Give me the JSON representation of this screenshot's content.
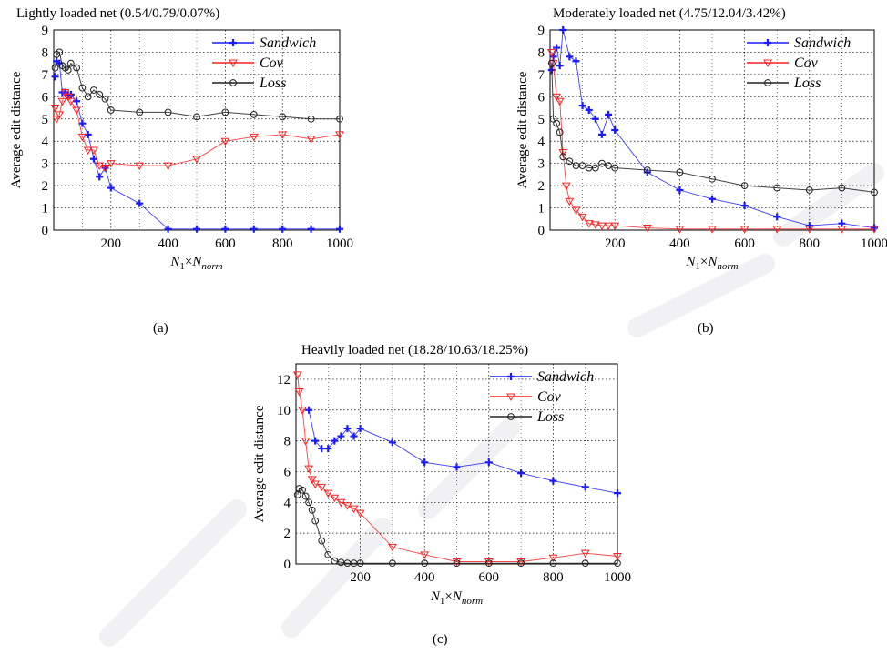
{
  "figure": {
    "captions": [
      "(a)",
      "(b)",
      "(c)"
    ]
  },
  "colors": {
    "sandwich": "#1a1aff",
    "cov": "#ff2020",
    "loss": "#202020",
    "grid": "#000000",
    "watermark": "#e6e6ec"
  },
  "chart_data": [
    {
      "type": "line",
      "title": "Lightly loaded net (0.54/0.79/0.07%)",
      "xlabel": "N1×Nnorm",
      "ylabel": "Average edit distance",
      "xlim": [
        0,
        1000
      ],
      "ylim": [
        0,
        9
      ],
      "xticks": [
        200,
        400,
        600,
        800,
        1000
      ],
      "yticks": [
        0,
        1,
        2,
        3,
        4,
        5,
        6,
        7,
        8,
        9
      ],
      "grid": true,
      "legend": "top-right",
      "series": [
        {
          "name": "Sandwich",
          "marker": "plus",
          "x": [
            5,
            10,
            20,
            30,
            40,
            50,
            60,
            80,
            100,
            120,
            140,
            160,
            180,
            200,
            300,
            400,
            500,
            600,
            700,
            800,
            900,
            1000
          ],
          "y": [
            6.9,
            7.6,
            7.5,
            6.2,
            6.2,
            6.1,
            6.1,
            5.8,
            4.8,
            4.3,
            3.2,
            2.4,
            2.8,
            1.9,
            1.2,
            0.05,
            0.05,
            0.05,
            0.05,
            0.05,
            0.05,
            0.05
          ]
        },
        {
          "name": "Cov",
          "marker": "triangle-down",
          "x": [
            5,
            10,
            20,
            30,
            40,
            50,
            60,
            80,
            100,
            120,
            140,
            160,
            180,
            200,
            300,
            400,
            500,
            600,
            700,
            800,
            900,
            1000
          ],
          "y": [
            5.5,
            5.0,
            5.2,
            5.8,
            6.2,
            6.0,
            5.8,
            5.4,
            4.2,
            3.6,
            3.6,
            2.9,
            2.8,
            3.0,
            2.9,
            2.9,
            3.2,
            4.0,
            4.2,
            4.3,
            4.1,
            4.3
          ]
        },
        {
          "name": "Loss",
          "marker": "circle",
          "x": [
            5,
            10,
            20,
            30,
            40,
            50,
            60,
            80,
            100,
            120,
            140,
            160,
            180,
            200,
            300,
            400,
            500,
            600,
            700,
            800,
            900,
            1000
          ],
          "y": [
            7.3,
            7.9,
            8.0,
            7.4,
            7.3,
            7.2,
            7.5,
            7.3,
            6.4,
            6.0,
            6.3,
            6.1,
            5.9,
            5.4,
            5.3,
            5.3,
            5.1,
            5.3,
            5.2,
            5.1,
            5.0,
            5.0
          ]
        }
      ]
    },
    {
      "type": "line",
      "title": "Moderately loaded net (4.75/12.04/3.42%)",
      "xlabel": "N1×Nnorm",
      "ylabel": "Average edit distance",
      "xlim": [
        0,
        1000
      ],
      "ylim": [
        0,
        9
      ],
      "xticks": [
        200,
        400,
        600,
        800,
        1000
      ],
      "yticks": [
        0,
        1,
        2,
        3,
        4,
        5,
        6,
        7,
        8,
        9
      ],
      "grid": true,
      "legend": "top-right",
      "series": [
        {
          "name": "Sandwich",
          "marker": "plus",
          "x": [
            5,
            10,
            20,
            30,
            40,
            60,
            80,
            100,
            120,
            140,
            160,
            180,
            200,
            300,
            400,
            500,
            600,
            700,
            800,
            900,
            1000
          ],
          "y": [
            7.2,
            7.8,
            8.2,
            7.4,
            9.0,
            7.8,
            7.6,
            5.6,
            5.4,
            5.0,
            4.3,
            5.2,
            4.5,
            2.6,
            1.8,
            1.4,
            1.1,
            0.6,
            0.2,
            0.3,
            0.1
          ]
        },
        {
          "name": "Cov",
          "marker": "triangle-down",
          "x": [
            5,
            10,
            20,
            30,
            40,
            50,
            60,
            80,
            100,
            120,
            140,
            160,
            180,
            200,
            300,
            400,
            500,
            600,
            700,
            800,
            900,
            1000
          ],
          "y": [
            8.0,
            7.5,
            6.0,
            5.8,
            3.5,
            2.0,
            1.3,
            0.9,
            0.6,
            0.3,
            0.25,
            0.2,
            0.2,
            0.2,
            0.1,
            0.05,
            0.05,
            0.05,
            0.05,
            0.05,
            0.05,
            0.05
          ]
        },
        {
          "name": "Loss",
          "marker": "circle",
          "x": [
            5,
            10,
            20,
            30,
            40,
            60,
            80,
            100,
            120,
            140,
            160,
            180,
            200,
            300,
            400,
            500,
            600,
            700,
            800,
            900,
            1000
          ],
          "y": [
            7.5,
            5.0,
            4.8,
            4.4,
            3.3,
            3.1,
            2.9,
            2.9,
            2.8,
            2.8,
            3.0,
            2.9,
            2.8,
            2.7,
            2.6,
            2.3,
            2.0,
            1.9,
            1.8,
            1.9,
            1.7
          ]
        }
      ]
    },
    {
      "type": "line",
      "title": "Heavily loaded net (18.28/10.63/18.25%)",
      "xlabel": "N1×Nnorm",
      "ylabel": "Average edit distance",
      "xlim": [
        0,
        1000
      ],
      "ylim": [
        0,
        13
      ],
      "xticks": [
        200,
        400,
        600,
        800,
        1000
      ],
      "yticks": [
        0,
        2,
        4,
        6,
        8,
        10,
        12
      ],
      "grid": true,
      "legend": "top-right",
      "series": [
        {
          "name": "Sandwich",
          "marker": "plus",
          "x": [
            40,
            60,
            80,
            100,
            120,
            140,
            160,
            180,
            200,
            300,
            400,
            500,
            600,
            700,
            800,
            900,
            1000
          ],
          "y": [
            10.0,
            8.0,
            7.5,
            7.5,
            8.0,
            8.3,
            8.8,
            8.3,
            8.8,
            7.9,
            6.6,
            6.3,
            6.6,
            5.9,
            5.4,
            5.0,
            4.6
          ]
        },
        {
          "name": "Cov",
          "marker": "triangle-down",
          "x": [
            5,
            10,
            20,
            30,
            40,
            50,
            60,
            80,
            100,
            120,
            140,
            160,
            180,
            200,
            300,
            400,
            500,
            600,
            700,
            800,
            900,
            1000
          ],
          "y": [
            12.3,
            11.2,
            10.0,
            8.0,
            6.2,
            5.5,
            5.2,
            5.0,
            4.6,
            4.3,
            4.0,
            3.8,
            3.6,
            3.3,
            1.1,
            0.6,
            0.15,
            0.15,
            0.15,
            0.4,
            0.7,
            0.5
          ]
        },
        {
          "name": "Loss",
          "marker": "circle",
          "x": [
            5,
            10,
            20,
            30,
            40,
            50,
            60,
            80,
            100,
            120,
            140,
            160,
            180,
            200,
            300,
            400,
            500,
            600,
            700,
            800,
            900,
            1000
          ],
          "y": [
            4.5,
            4.9,
            4.8,
            4.4,
            4.0,
            3.5,
            2.8,
            1.5,
            0.6,
            0.2,
            0.1,
            0.05,
            0.05,
            0.05,
            0.05,
            0.05,
            0.05,
            0.05,
            0.05,
            0.05,
            0.05,
            0.05
          ]
        }
      ]
    }
  ]
}
